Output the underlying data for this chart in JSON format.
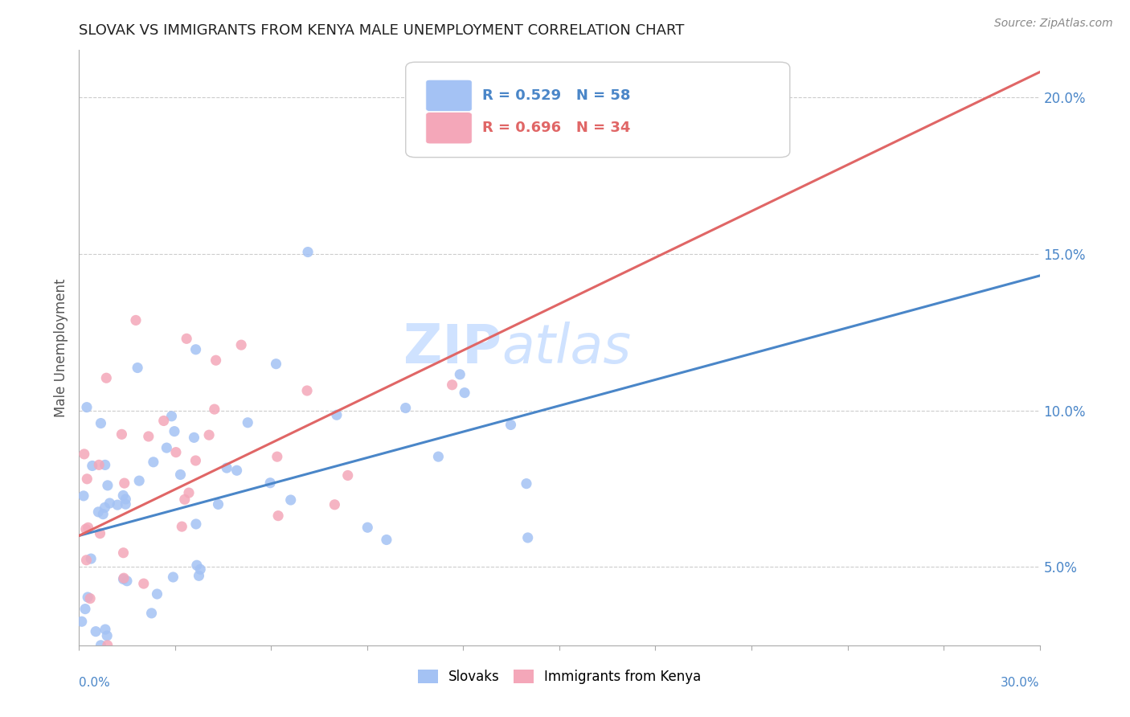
{
  "title": "SLOVAK VS IMMIGRANTS FROM KENYA MALE UNEMPLOYMENT CORRELATION CHART",
  "source": "Source: ZipAtlas.com",
  "ylabel": "Male Unemployment",
  "y_ticks": [
    0.05,
    0.1,
    0.15,
    0.2
  ],
  "y_tick_labels": [
    "5.0%",
    "10.0%",
    "15.0%",
    "20.0%"
  ],
  "x_range": [
    0.0,
    0.3
  ],
  "y_range": [
    0.025,
    0.215
  ],
  "slovak_R": 0.529,
  "slovak_N": 58,
  "kenya_R": 0.696,
  "kenya_N": 34,
  "slovak_color": "#a4c2f4",
  "kenya_color": "#f4a7b9",
  "slovak_line_color": "#4a86c8",
  "kenya_line_color": "#e06666",
  "background_color": "#ffffff",
  "watermark_color": "#cfe2ff",
  "scatter_alpha": 0.85,
  "scatter_size": 90,
  "slovak_trend_x": [
    0.0,
    0.3
  ],
  "slovak_trend_y": [
    0.06,
    0.143
  ],
  "kenya_trend_x": [
    0.0,
    0.3
  ],
  "kenya_trend_y": [
    0.06,
    0.208
  ]
}
